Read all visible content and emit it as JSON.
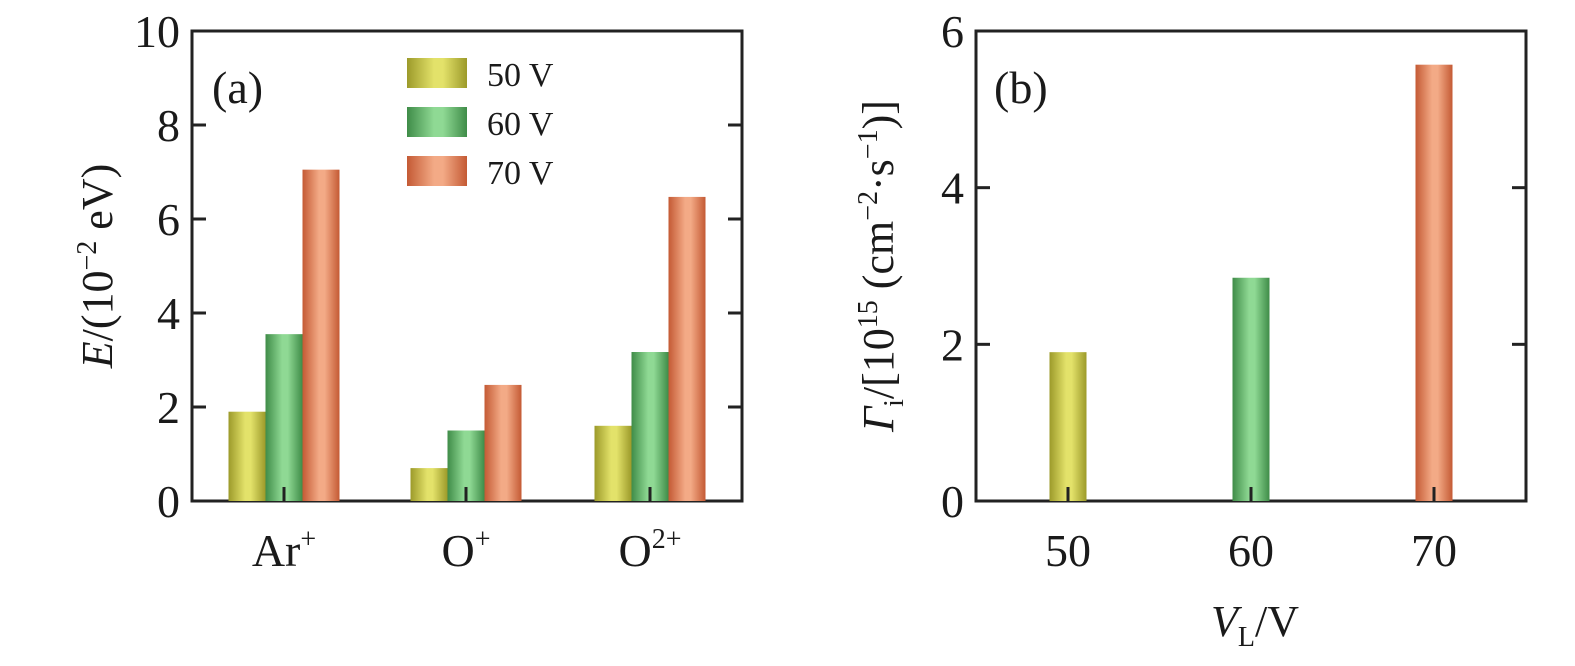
{
  "colors": {
    "v50": {
      "dark": "#9c9a2a",
      "light": "#e3e26a"
    },
    "v60": {
      "dark": "#3f8c48",
      "light": "#8fd994"
    },
    "v70": {
      "dark": "#c45a34",
      "light": "#f3aa86"
    },
    "axis": "#222222"
  },
  "chart_data": [
    {
      "type": "bar",
      "panel_label": "(a)",
      "categories": [
        "Ar",
        "O",
        "O"
      ],
      "category_superscripts": [
        "+",
        "+",
        "2+"
      ],
      "series": [
        {
          "name": "50 V",
          "color_key": "v50",
          "values": [
            1.9,
            0.7,
            1.6
          ]
        },
        {
          "name": "60 V",
          "color_key": "v60",
          "values": [
            3.55,
            1.5,
            3.17
          ]
        },
        {
          "name": "70 V",
          "color_key": "v70",
          "values": [
            7.05,
            2.47,
            6.47
          ]
        }
      ],
      "ylabel": {
        "symbol": "E",
        "rest": "/(10",
        "exp": "−2",
        "unit": " eV)"
      },
      "ylim": [
        0,
        10
      ],
      "yticks": [
        "0",
        "2",
        "4",
        "6",
        "8",
        "10"
      ],
      "legend": "top-center"
    },
    {
      "type": "bar",
      "panel_label": "(b)",
      "categories": [
        "50",
        "60",
        "70"
      ],
      "series": [
        {
          "color_keys": [
            "v50",
            "v60",
            "v70"
          ],
          "values": [
            1.9,
            2.85,
            5.57
          ]
        }
      ],
      "xlabel": {
        "symbol": "V",
        "sub": "L",
        "rest": "/V"
      },
      "ylabel": {
        "symbol": "Γ",
        "sub": "i",
        "p1": "/[10",
        "exp1": "15",
        "p2": " (cm",
        "exp2": "−2",
        "p3": "·s",
        "exp3": "−1",
        "p4": ")]"
      },
      "ylim": [
        0,
        6
      ],
      "yticks": [
        "0",
        "2",
        "4",
        "6"
      ]
    }
  ]
}
